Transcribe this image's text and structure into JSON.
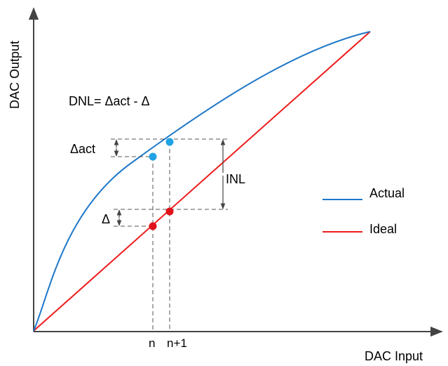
{
  "axes": {
    "x_label": "DAC Input",
    "y_label": "DAC Output"
  },
  "formula": "DNL= Δact - Δ",
  "annotations": {
    "delta_act": "Δact",
    "delta": "Δ",
    "inl": "INL"
  },
  "ticks": {
    "n": "n",
    "n_plus_1": "n+1"
  },
  "legend": {
    "items": [
      {
        "label": "Actual",
        "color": "#1f77c8"
      },
      {
        "label": "Ideal",
        "color": "#ee1c1c"
      }
    ]
  },
  "colors": {
    "actual_curve": "#1f77c8",
    "ideal_line": "#ee1c1c",
    "actual_points": "#1fa2e6",
    "ideal_points": "#e0111b",
    "axis": "#444444",
    "guides": "#555555"
  }
}
